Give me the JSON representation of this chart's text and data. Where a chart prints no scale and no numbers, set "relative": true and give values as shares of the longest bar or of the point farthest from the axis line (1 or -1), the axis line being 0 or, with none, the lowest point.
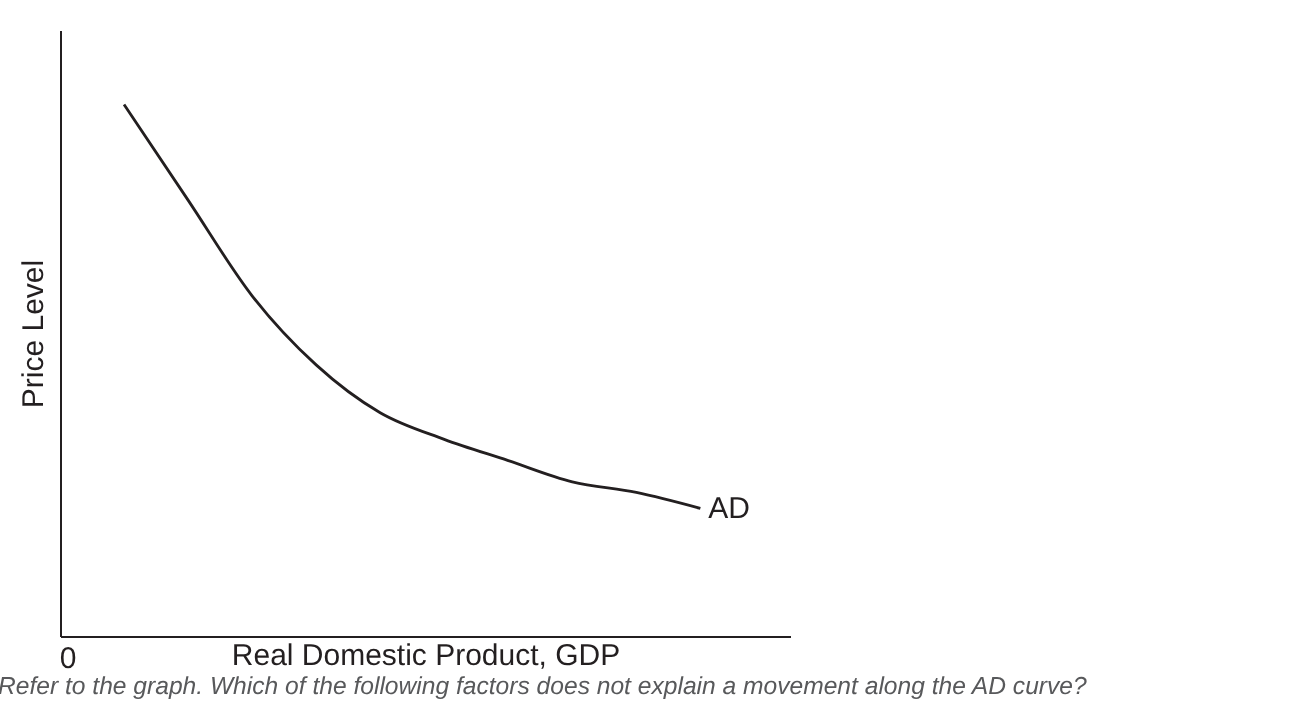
{
  "chart_data": {
    "type": "line",
    "relative": true,
    "xlabel": "Real Domestic Product, GDP",
    "ylabel": "Price Level",
    "categories": [
      null,
      null,
      null,
      null,
      null,
      null,
      null,
      null,
      null,
      null,
      null,
      null
    ],
    "series": [
      {
        "name": "AD",
        "color": "#231f20",
        "values": [
          null,
          1,
          0.82,
          0.64,
          0.51,
          0.42,
          0.37,
          0.33,
          0.29,
          0.27,
          0.24,
          null
        ]
      }
    ],
    "marker": "none",
    "line_style": "solid",
    "grid": false,
    "legend": false,
    "annotations": [
      "0",
      "Refer to the graph. Which of the following factors does not explain a movement along the AD curve?"
    ]
  }
}
